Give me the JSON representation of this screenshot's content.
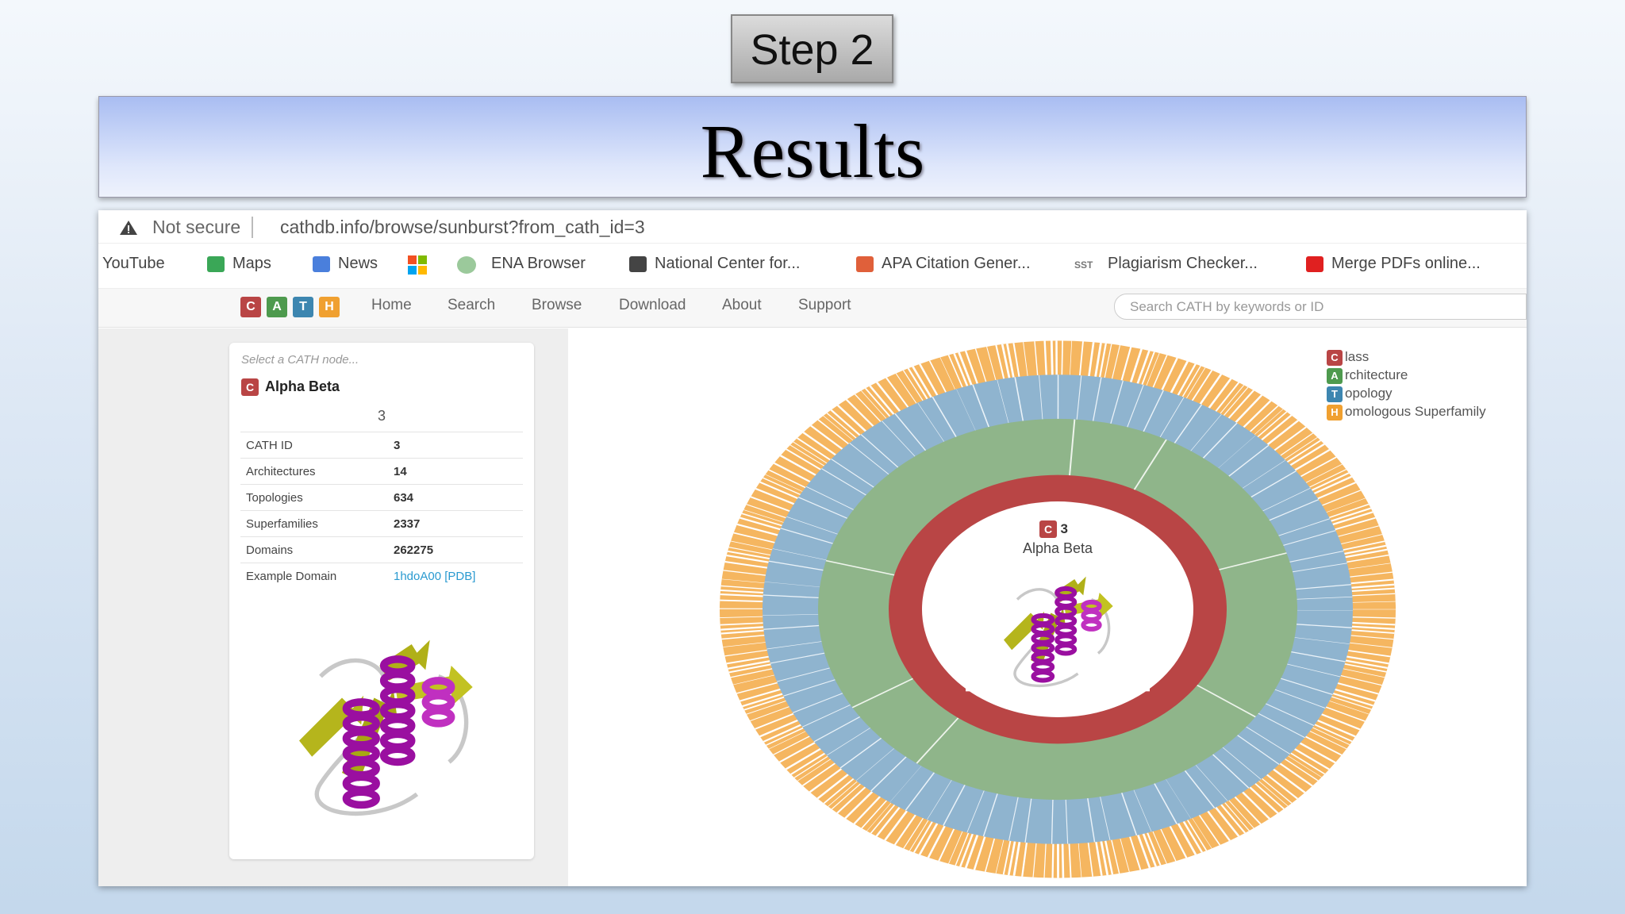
{
  "step_label": "Step 2",
  "title": "Results",
  "browser": {
    "security": "Not secure",
    "url": "cathdb.info/browse/sunburst?from_cath_id=3",
    "bookmarks": [
      "YouTube",
      "Maps",
      "News",
      "ENA Browser",
      "National Center for...",
      "APA Citation Gener...",
      "Plagiarism Checker...",
      "Merge PDFs online..."
    ],
    "bookmark_badge": "SST"
  },
  "site": {
    "logo": [
      "C",
      "A",
      "T",
      "H"
    ],
    "nav": [
      "Home",
      "Search",
      "Browse",
      "Download",
      "About",
      "Support"
    ],
    "search_placeholder": "Search CATH by keywords or ID"
  },
  "panel": {
    "prompt": "Select a CATH node...",
    "badge": "C",
    "name": "Alpha Beta",
    "id": "3",
    "rows": [
      [
        "CATH ID",
        "3"
      ],
      [
        "Architectures",
        "14"
      ],
      [
        "Topologies",
        "634"
      ],
      [
        "Superfamilies",
        "2337"
      ],
      [
        "Domains",
        "262275"
      ],
      [
        "Example Domain",
        "1hdoA00 [PDB]"
      ]
    ]
  },
  "sunburst": {
    "center_badge": "C",
    "center_id": "3",
    "center_name": "Alpha Beta"
  },
  "legend": [
    {
      "letter": "C",
      "text": "lass"
    },
    {
      "letter": "A",
      "text": "rchitecture"
    },
    {
      "letter": "T",
      "text": "opology"
    },
    {
      "letter": "H",
      "text": "omologous Superfamily"
    }
  ]
}
